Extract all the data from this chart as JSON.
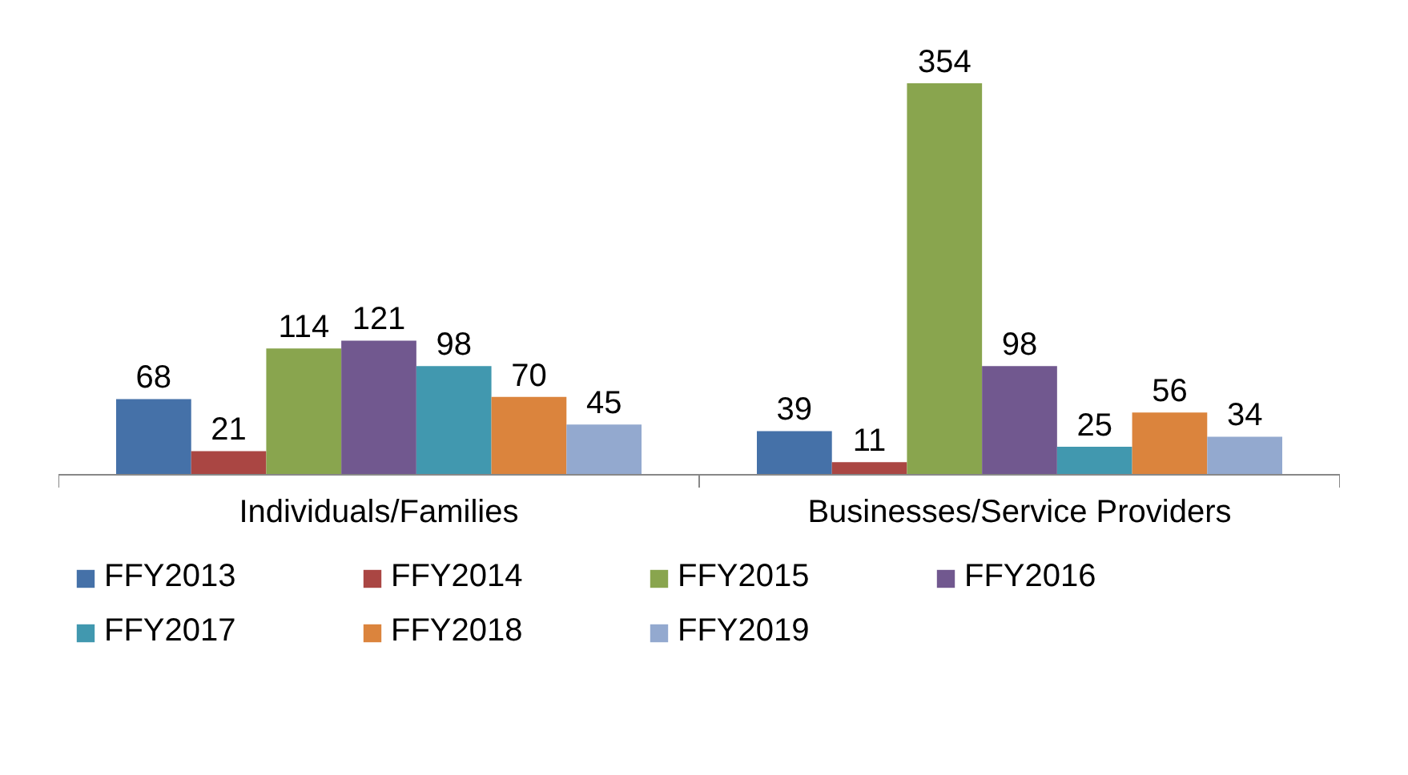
{
  "chart_data": {
    "type": "bar",
    "categories": [
      "Individuals/Families",
      "Businesses/Service Providers"
    ],
    "data_labels": true,
    "legend": "bottom",
    "grid": false,
    "series": [
      {
        "name": "FFY2013",
        "color": "#4571a8",
        "values": [
          68,
          39
        ]
      },
      {
        "name": "FFY2014",
        "color": "#aa4643",
        "values": [
          21,
          11
        ]
      },
      {
        "name": "FFY2015",
        "color": "#89a54e",
        "values": [
          114,
          354
        ]
      },
      {
        "name": "FFY2016",
        "color": "#71588f",
        "values": [
          121,
          98
        ]
      },
      {
        "name": "FFY2017",
        "color": "#4198af",
        "values": [
          98,
          25
        ]
      },
      {
        "name": "FFY2018",
        "color": "#db843d",
        "values": [
          70,
          56
        ]
      },
      {
        "name": "FFY2019",
        "color": "#93a9cf",
        "values": [
          45,
          34
        ]
      }
    ]
  }
}
